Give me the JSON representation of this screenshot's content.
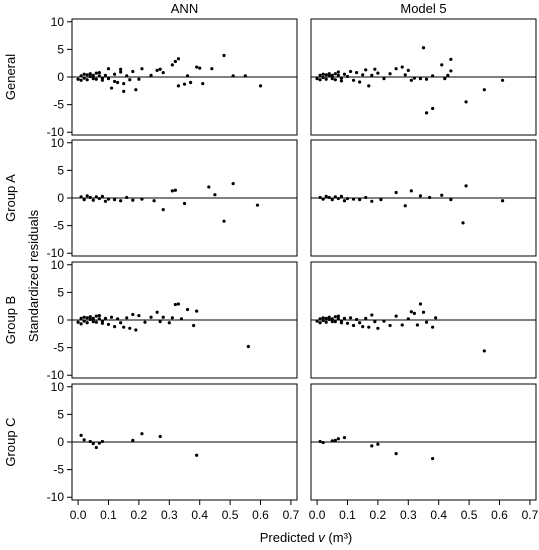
{
  "chart_data": {
    "type": "scatter",
    "xlabel": "Predicted ",
    "xlabel_var": "v",
    "xlabel_unit": " (m³)",
    "ylabel": "Standardized residuals",
    "columns": [
      "ANN",
      "Model 5"
    ],
    "rows": [
      "General",
      "Group A",
      "Group B",
      "Group C"
    ],
    "xlim": [
      -0.02,
      0.72
    ],
    "ylim": [
      -10.5,
      10.5
    ],
    "xticks": [
      "0.0",
      "0.1",
      "0.2",
      "0.3",
      "0.4",
      "0.5",
      "0.6",
      "0.7"
    ],
    "yticks": [
      "-10",
      "-5",
      "0",
      "5",
      "10"
    ],
    "reference_line_y": 0,
    "panels": [
      {
        "row": "General",
        "column": "ANN",
        "points": [
          [
            0.0,
            -0.4
          ],
          [
            0.01,
            0.2
          ],
          [
            0.01,
            -0.6
          ],
          [
            0.02,
            0.5
          ],
          [
            0.02,
            -0.2
          ],
          [
            0.03,
            0.4
          ],
          [
            0.03,
            -0.5
          ],
          [
            0.04,
            0.1
          ],
          [
            0.04,
            0.6
          ],
          [
            0.05,
            -0.3
          ],
          [
            0.05,
            0.3
          ],
          [
            0.06,
            0.7
          ],
          [
            0.06,
            -0.4
          ],
          [
            0.07,
            0.2
          ],
          [
            0.07,
            0.8
          ],
          [
            0.08,
            -0.6
          ],
          [
            0.08,
            -0.2
          ],
          [
            0.09,
            0.3
          ],
          [
            0.1,
            1.5
          ],
          [
            0.1,
            -0.3
          ],
          [
            0.11,
            -2.0
          ],
          [
            0.12,
            0.5
          ],
          [
            0.12,
            -0.8
          ],
          [
            0.13,
            -1.0
          ],
          [
            0.14,
            0.9
          ],
          [
            0.14,
            1.4
          ],
          [
            0.15,
            -1.2
          ],
          [
            0.15,
            -2.6
          ],
          [
            0.16,
            0.2
          ],
          [
            0.17,
            -0.5
          ],
          [
            0.18,
            1.0
          ],
          [
            0.19,
            -2.3
          ],
          [
            0.2,
            -0.4
          ],
          [
            0.21,
            1.5
          ],
          [
            0.24,
            0.3
          ],
          [
            0.26,
            1.2
          ],
          [
            0.27,
            1.4
          ],
          [
            0.28,
            0.8
          ],
          [
            0.31,
            2.2
          ],
          [
            0.32,
            2.8
          ],
          [
            0.33,
            3.3
          ],
          [
            0.33,
            -1.6
          ],
          [
            0.35,
            -1.3
          ],
          [
            0.36,
            0.2
          ],
          [
            0.37,
            -1.0
          ],
          [
            0.39,
            1.8
          ],
          [
            0.4,
            1.6
          ],
          [
            0.41,
            -1.2
          ],
          [
            0.44,
            1.5
          ],
          [
            0.48,
            3.9
          ],
          [
            0.51,
            0.2
          ],
          [
            0.55,
            0.2
          ],
          [
            0.6,
            -1.6
          ]
        ]
      },
      {
        "row": "General",
        "column": "Model 5",
        "points": [
          [
            0.0,
            -0.3
          ],
          [
            0.01,
            0.3
          ],
          [
            0.01,
            -0.5
          ],
          [
            0.02,
            0.5
          ],
          [
            0.02,
            -0.1
          ],
          [
            0.03,
            0.4
          ],
          [
            0.03,
            -0.4
          ],
          [
            0.04,
            0.2
          ],
          [
            0.04,
            0.6
          ],
          [
            0.05,
            -0.3
          ],
          [
            0.05,
            0.3
          ],
          [
            0.06,
            0.6
          ],
          [
            0.06,
            -0.5
          ],
          [
            0.07,
            0.3
          ],
          [
            0.07,
            0.9
          ],
          [
            0.08,
            -0.7
          ],
          [
            0.08,
            -0.2
          ],
          [
            0.09,
            0.5
          ],
          [
            0.1,
            0.1
          ],
          [
            0.11,
            1.0
          ],
          [
            0.12,
            -0.6
          ],
          [
            0.13,
            0.8
          ],
          [
            0.14,
            -0.9
          ],
          [
            0.15,
            0.4
          ],
          [
            0.16,
            1.3
          ],
          [
            0.17,
            -1.6
          ],
          [
            0.18,
            0.3
          ],
          [
            0.19,
            1.4
          ],
          [
            0.2,
            0.7
          ],
          [
            0.22,
            -0.3
          ],
          [
            0.24,
            0.6
          ],
          [
            0.26,
            1.5
          ],
          [
            0.28,
            1.8
          ],
          [
            0.29,
            0.4
          ],
          [
            0.3,
            1.2
          ],
          [
            0.31,
            -0.6
          ],
          [
            0.32,
            -0.2
          ],
          [
            0.34,
            -0.3
          ],
          [
            0.35,
            5.3
          ],
          [
            0.36,
            -0.4
          ],
          [
            0.36,
            -6.5
          ],
          [
            0.38,
            0.2
          ],
          [
            0.38,
            -5.7
          ],
          [
            0.41,
            2.2
          ],
          [
            0.42,
            -0.3
          ],
          [
            0.43,
            0.3
          ],
          [
            0.44,
            1.1
          ],
          [
            0.44,
            3.2
          ],
          [
            0.49,
            -4.5
          ],
          [
            0.55,
            -2.3
          ],
          [
            0.61,
            -0.6
          ]
        ]
      },
      {
        "row": "Group A",
        "column": "ANN",
        "points": [
          [
            0.01,
            0.2
          ],
          [
            0.02,
            -0.3
          ],
          [
            0.03,
            0.4
          ],
          [
            0.04,
            0.1
          ],
          [
            0.05,
            -0.4
          ],
          [
            0.06,
            0.2
          ],
          [
            0.07,
            -0.1
          ],
          [
            0.08,
            0.3
          ],
          [
            0.09,
            -0.6
          ],
          [
            0.1,
            -0.2
          ],
          [
            0.12,
            -0.3
          ],
          [
            0.14,
            -0.5
          ],
          [
            0.16,
            0.1
          ],
          [
            0.18,
            -0.4
          ],
          [
            0.21,
            -0.2
          ],
          [
            0.25,
            -0.5
          ],
          [
            0.28,
            -2.1
          ],
          [
            0.31,
            1.3
          ],
          [
            0.32,
            1.4
          ],
          [
            0.35,
            -1.0
          ],
          [
            0.43,
            2.0
          ],
          [
            0.45,
            0.6
          ],
          [
            0.48,
            -4.2
          ],
          [
            0.51,
            2.6
          ],
          [
            0.59,
            -1.3
          ]
        ]
      },
      {
        "row": "Group A",
        "column": "Model 5",
        "points": [
          [
            0.01,
            0.1
          ],
          [
            0.02,
            -0.2
          ],
          [
            0.03,
            0.3
          ],
          [
            0.04,
            0.1
          ],
          [
            0.05,
            -0.3
          ],
          [
            0.06,
            0.2
          ],
          [
            0.07,
            -0.1
          ],
          [
            0.08,
            0.3
          ],
          [
            0.09,
            -0.5
          ],
          [
            0.1,
            -0.1
          ],
          [
            0.12,
            -0.2
          ],
          [
            0.14,
            -0.3
          ],
          [
            0.16,
            0.1
          ],
          [
            0.18,
            -0.6
          ],
          [
            0.21,
            -0.3
          ],
          [
            0.26,
            1.0
          ],
          [
            0.29,
            -1.4
          ],
          [
            0.31,
            1.3
          ],
          [
            0.34,
            0.4
          ],
          [
            0.37,
            0.1
          ],
          [
            0.41,
            0.5
          ],
          [
            0.44,
            -0.3
          ],
          [
            0.48,
            -4.5
          ],
          [
            0.49,
            2.2
          ],
          [
            0.61,
            -0.5
          ]
        ]
      },
      {
        "row": "Group B",
        "column": "ANN",
        "points": [
          [
            0.0,
            -0.4
          ],
          [
            0.01,
            0.3
          ],
          [
            0.01,
            -0.7
          ],
          [
            0.02,
            0.5
          ],
          [
            0.02,
            -0.2
          ],
          [
            0.03,
            0.4
          ],
          [
            0.03,
            -0.5
          ],
          [
            0.04,
            0.1
          ],
          [
            0.04,
            0.6
          ],
          [
            0.05,
            -0.3
          ],
          [
            0.05,
            0.3
          ],
          [
            0.06,
            0.7
          ],
          [
            0.06,
            -0.4
          ],
          [
            0.07,
            0.2
          ],
          [
            0.07,
            0.8
          ],
          [
            0.08,
            -0.6
          ],
          [
            0.08,
            -0.2
          ],
          [
            0.09,
            0.3
          ],
          [
            0.1,
            -0.8
          ],
          [
            0.11,
            0.5
          ],
          [
            0.12,
            -1.2
          ],
          [
            0.13,
            0.2
          ],
          [
            0.14,
            -0.5
          ],
          [
            0.15,
            -1.3
          ],
          [
            0.16,
            0.4
          ],
          [
            0.17,
            -1.5
          ],
          [
            0.18,
            1.0
          ],
          [
            0.19,
            -1.8
          ],
          [
            0.2,
            0.8
          ],
          [
            0.22,
            -0.4
          ],
          [
            0.24,
            0.5
          ],
          [
            0.26,
            1.4
          ],
          [
            0.27,
            -0.3
          ],
          [
            0.28,
            0.5
          ],
          [
            0.3,
            -0.5
          ],
          [
            0.31,
            0.4
          ],
          [
            0.32,
            2.8
          ],
          [
            0.33,
            2.9
          ],
          [
            0.34,
            0.2
          ],
          [
            0.36,
            1.9
          ],
          [
            0.38,
            -1.0
          ],
          [
            0.39,
            1.6
          ],
          [
            0.56,
            -4.8
          ]
        ]
      },
      {
        "row": "Group B",
        "column": "Model 5",
        "points": [
          [
            0.0,
            -0.2
          ],
          [
            0.01,
            0.2
          ],
          [
            0.01,
            -0.5
          ],
          [
            0.02,
            0.4
          ],
          [
            0.02,
            -0.1
          ],
          [
            0.03,
            0.3
          ],
          [
            0.03,
            -0.4
          ],
          [
            0.04,
            0.1
          ],
          [
            0.04,
            0.5
          ],
          [
            0.05,
            -0.3
          ],
          [
            0.05,
            0.2
          ],
          [
            0.06,
            0.6
          ],
          [
            0.06,
            -0.3
          ],
          [
            0.07,
            0.2
          ],
          [
            0.07,
            0.7
          ],
          [
            0.08,
            -0.5
          ],
          [
            0.08,
            -0.2
          ],
          [
            0.09,
            0.3
          ],
          [
            0.1,
            -0.6
          ],
          [
            0.11,
            0.4
          ],
          [
            0.12,
            -1.0
          ],
          [
            0.13,
            0.1
          ],
          [
            0.14,
            -0.5
          ],
          [
            0.15,
            -1.2
          ],
          [
            0.16,
            0.3
          ],
          [
            0.17,
            -1.3
          ],
          [
            0.18,
            0.9
          ],
          [
            0.19,
            -0.3
          ],
          [
            0.2,
            -1.5
          ],
          [
            0.22,
            -0.2
          ],
          [
            0.24,
            -1.0
          ],
          [
            0.26,
            0.7
          ],
          [
            0.28,
            -0.9
          ],
          [
            0.3,
            0.2
          ],
          [
            0.31,
            1.5
          ],
          [
            0.32,
            1.2
          ],
          [
            0.33,
            -0.9
          ],
          [
            0.34,
            2.9
          ],
          [
            0.35,
            1.4
          ],
          [
            0.36,
            -0.4
          ],
          [
            0.38,
            -1.3
          ],
          [
            0.39,
            0.4
          ],
          [
            0.55,
            -5.6
          ]
        ]
      },
      {
        "row": "Group C",
        "column": "ANN",
        "points": [
          [
            0.01,
            1.2
          ],
          [
            0.02,
            0.4
          ],
          [
            0.04,
            0.1
          ],
          [
            0.05,
            -0.3
          ],
          [
            0.06,
            -1.0
          ],
          [
            0.07,
            -0.2
          ],
          [
            0.08,
            0.1
          ],
          [
            0.18,
            0.3
          ],
          [
            0.21,
            1.5
          ],
          [
            0.27,
            1.0
          ],
          [
            0.39,
            -2.4
          ]
        ]
      },
      {
        "row": "Group C",
        "column": "Model 5",
        "points": [
          [
            0.01,
            0.1
          ],
          [
            0.02,
            -0.1
          ],
          [
            0.05,
            0.2
          ],
          [
            0.06,
            0.3
          ],
          [
            0.07,
            0.6
          ],
          [
            0.09,
            0.8
          ],
          [
            0.18,
            -0.7
          ],
          [
            0.2,
            -0.4
          ],
          [
            0.26,
            -2.1
          ],
          [
            0.38,
            -3.0
          ]
        ]
      }
    ]
  }
}
